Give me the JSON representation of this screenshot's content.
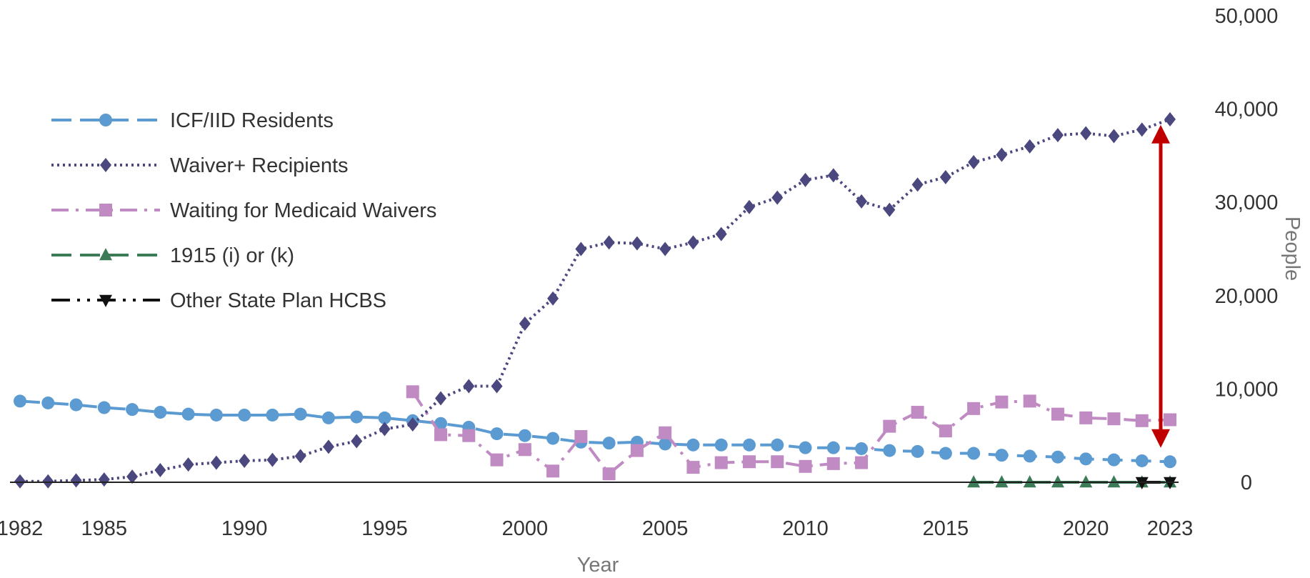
{
  "chart_data": {
    "type": "line",
    "title": "",
    "xlabel": "Year",
    "ylabel": "People",
    "xlim": [
      1982,
      2023
    ],
    "ylim": [
      0,
      50000
    ],
    "x_ticks": [
      1982,
      1985,
      1990,
      1995,
      2000,
      2005,
      2010,
      2015,
      2020,
      2023
    ],
    "y_ticks": [
      0,
      10000,
      20000,
      30000,
      40000,
      50000
    ],
    "y_tick_labels": [
      "0",
      "10,000",
      "20,000",
      "30,000",
      "40,000",
      "50,000"
    ],
    "y_axis_side": "right",
    "grid": false,
    "legend_position": "top-left",
    "series": [
      {
        "name": "ICF/IID Residents",
        "color": "#5b9bd1",
        "marker": "circle",
        "dash": "dashed",
        "x": [
          1982,
          1983,
          1984,
          1985,
          1986,
          1987,
          1988,
          1989,
          1990,
          1991,
          1992,
          1993,
          1994,
          1995,
          1996,
          1997,
          1998,
          1999,
          2000,
          2001,
          2002,
          2003,
          2004,
          2005,
          2006,
          2007,
          2008,
          2009,
          2010,
          2011,
          2012,
          2013,
          2014,
          2015,
          2016,
          2017,
          2018,
          2019,
          2020,
          2021,
          2022,
          2023
        ],
        "y": [
          8700,
          8500,
          8300,
          8000,
          7800,
          7500,
          7300,
          7200,
          7200,
          7200,
          7300,
          6900,
          7000,
          6900,
          6600,
          6300,
          5900,
          5200,
          5000,
          4700,
          4300,
          4200,
          4300,
          4100,
          4000,
          4000,
          4000,
          4000,
          3700,
          3700,
          3600,
          3400,
          3300,
          3100,
          3100,
          2900,
          2800,
          2700,
          2500,
          2400,
          2300,
          2200
        ]
      },
      {
        "name": "Waiver+ Recipients",
        "color": "#4b477f",
        "marker": "diamond",
        "dash": "dotted",
        "x": [
          1982,
          1983,
          1984,
          1985,
          1986,
          1987,
          1988,
          1989,
          1990,
          1991,
          1992,
          1993,
          1994,
          1995,
          1996,
          1997,
          1998,
          1999,
          2000,
          2001,
          2002,
          2003,
          2004,
          2005,
          2006,
          2007,
          2008,
          2009,
          2010,
          2011,
          2012,
          2013,
          2014,
          2015,
          2016,
          2017,
          2018,
          2019,
          2020,
          2021,
          2022,
          2023
        ],
        "y": [
          100,
          100,
          200,
          300,
          600,
          1300,
          1900,
          2100,
          2300,
          2400,
          2800,
          3800,
          4400,
          5700,
          6200,
          9000,
          10300,
          10300,
          17000,
          19700,
          25000,
          25700,
          25600,
          25000,
          25700,
          26600,
          29500,
          30500,
          32400,
          32900,
          30100,
          29200,
          31900,
          32700,
          34300,
          35100,
          36000,
          37200,
          37400,
          37100,
          37800,
          38900
        ]
      },
      {
        "name": "Waiting for Medicaid Waivers",
        "color": "#c08ac3",
        "marker": "square",
        "dash": "dashdot",
        "x": [
          1996,
          1997,
          1998,
          1999,
          2000,
          2001,
          2002,
          2003,
          2004,
          2005,
          2006,
          2007,
          2008,
          2009,
          2010,
          2011,
          2012,
          2013,
          2014,
          2015,
          2016,
          2017,
          2018,
          2019,
          2020,
          2021,
          2022,
          2023
        ],
        "y": [
          9700,
          5100,
          5000,
          2400,
          3500,
          1200,
          4900,
          900,
          3400,
          5300,
          1600,
          2100,
          2200,
          2200,
          1700,
          2000,
          2100,
          6000,
          7500,
          5500,
          7900,
          8600,
          8700,
          7300,
          6900,
          6800,
          6600,
          6700
        ]
      },
      {
        "name": "1915 (i) or (k)",
        "color": "#3c7b57",
        "marker": "triangle-up",
        "dash": "dashed",
        "x": [
          2016,
          2017,
          2018,
          2019,
          2020,
          2021,
          2022,
          2023
        ],
        "y": [
          0,
          0,
          0,
          0,
          0,
          0,
          0,
          0
        ]
      },
      {
        "name": "Other State Plan HCBS",
        "color": "#111111",
        "marker": "triangle-down",
        "dash": "dashdotdot",
        "x": [
          2022,
          2023
        ],
        "y": [
          0,
          0
        ]
      }
    ],
    "annotations": [
      {
        "type": "double-arrow",
        "color": "#c00000",
        "x": 2023,
        "y_from": 4000,
        "y_to": 38000
      }
    ]
  }
}
